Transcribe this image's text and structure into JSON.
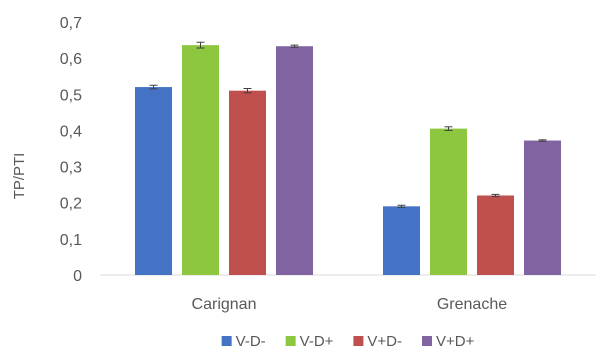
{
  "chart_data": {
    "type": "bar",
    "ylabel": "TP/PTI",
    "xlabel": "",
    "ylim": [
      0,
      0.7
    ],
    "yticks": [
      "0",
      "0,1",
      "0,2",
      "0,3",
      "0,4",
      "0,5",
      "0,6",
      "0,7"
    ],
    "categories": [
      "Carignan",
      "Grenache"
    ],
    "series": [
      {
        "name": "V-D-",
        "color": "#4472C4",
        "values": [
          0.52,
          0.19
        ],
        "errors": [
          0.005,
          0.003
        ]
      },
      {
        "name": "V-D+",
        "color": "#8DC63F",
        "values": [
          0.636,
          0.405
        ],
        "errors": [
          0.008,
          0.005
        ]
      },
      {
        "name": "V+D-",
        "color": "#C0504D",
        "values": [
          0.51,
          0.22
        ],
        "errors": [
          0.006,
          0.003
        ]
      },
      {
        "name": "V+D+",
        "color": "#8064A2",
        "values": [
          0.633,
          0.372
        ],
        "errors": [
          0.003,
          0.002
        ]
      }
    ],
    "legend_position": "bottom",
    "grid": false
  }
}
